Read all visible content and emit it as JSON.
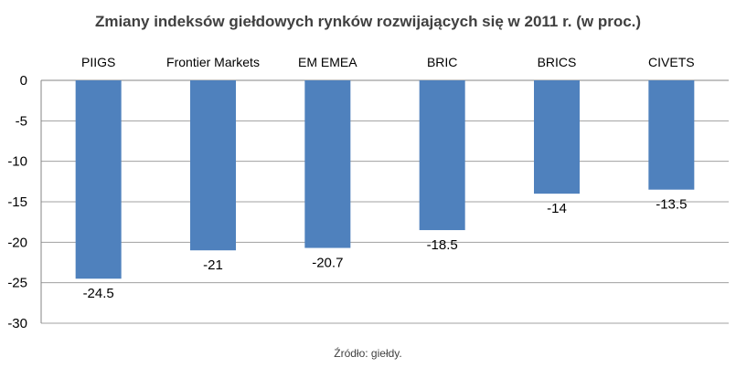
{
  "chart_data": {
    "type": "bar",
    "title": "Zmiany indeksów giełdowych rynków rozwijających się w 2011 r. (w proc.)",
    "categories": [
      "PIIGS",
      "Frontier Markets",
      "EM EMEA",
      "BRIC",
      "BRICS",
      "CIVETS"
    ],
    "values": [
      -24.5,
      -21,
      -20.7,
      -18.5,
      -14,
      -13.5
    ],
    "data_labels": [
      "-24.5",
      "-21",
      "-20.7",
      "-18.5",
      "-14",
      "-13.5"
    ],
    "xlabel": "",
    "ylabel": "",
    "ylim": [
      -30,
      0
    ],
    "yticks": [
      0,
      -5,
      -10,
      -15,
      -20,
      -25,
      -30
    ],
    "grid": true,
    "category_labels_position": "top",
    "bar_color": "#4f81bd",
    "source": "Źródło: giełdy."
  }
}
